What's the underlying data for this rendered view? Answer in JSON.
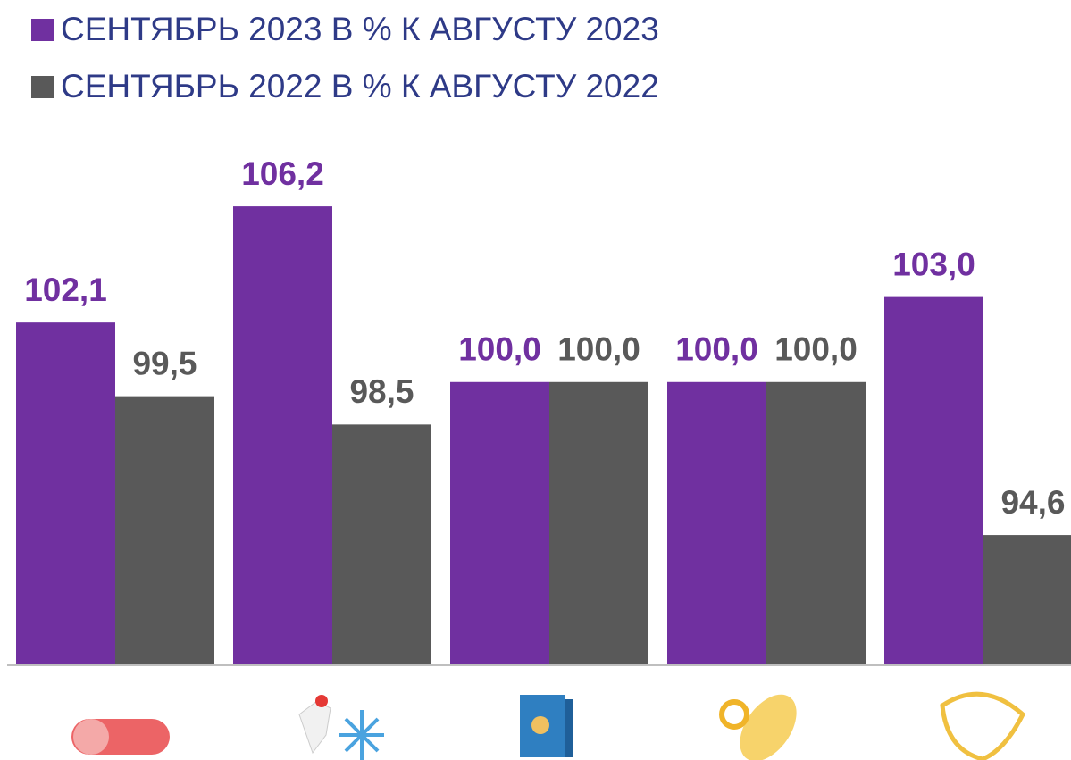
{
  "chart_data": {
    "type": "bar",
    "categories": [
      null,
      null,
      null,
      null,
      null
    ],
    "series": [
      {
        "name": "СЕНТЯБРЬ 2023 В % К АВГУСТУ 2023",
        "color": "#7030a0",
        "values": [
          102.1,
          106.2,
          100.0,
          100.0,
          103.0
        ],
        "value_labels": [
          "102,1",
          "106,2",
          "100,0",
          "100,0",
          "103,0"
        ]
      },
      {
        "name": "СЕНТЯБРЬ 2022 В % К АВГУСТУ 2022",
        "color": "#595959",
        "values": [
          99.5,
          98.5,
          100.0,
          100.0,
          94.6
        ],
        "value_labels": [
          "99,5",
          "98,5",
          "100,0",
          "100,0",
          "94,6"
        ]
      }
    ],
    "ylim": [
      90,
      108
    ]
  }
}
